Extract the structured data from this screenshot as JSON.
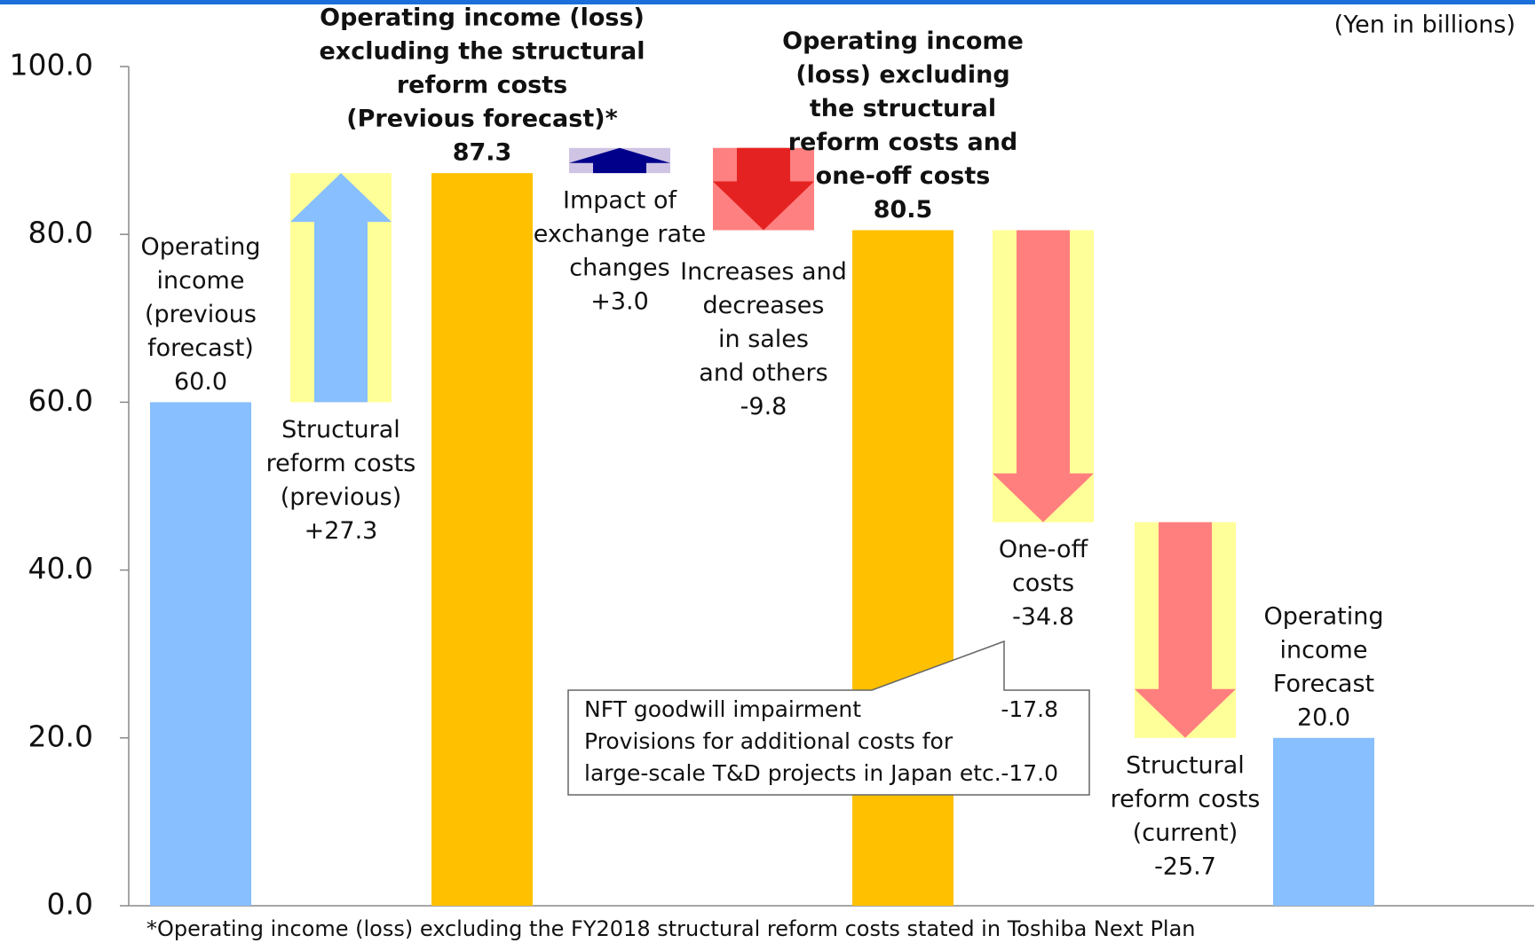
{
  "chart_data": {
    "type": "waterfall",
    "unit_label": "(Yen in billions)",
    "footnote": "*Operating income (loss) excluding the FY2018 structural reform costs stated in Toshiba Next Plan",
    "categories": [
      [
        "Operating",
        "income",
        "(previous",
        "forecast)"
      ],
      [
        "Structural",
        "reform costs",
        "(previous)"
      ],
      [
        "Operating income (loss)",
        "excluding the structural",
        "reform costs",
        "(Previous forecast)*"
      ],
      [
        "Impact of",
        "exchange rate",
        "changes"
      ],
      [
        "Increases and",
        "decreases",
        "in sales",
        "and others"
      ],
      [
        "Operating income",
        "(loss) excluding",
        "the structural",
        "reform costs and",
        "one-off costs"
      ],
      [
        "One-off",
        "costs"
      ],
      [
        "Structural",
        "reform costs",
        "(current)"
      ],
      [
        "Operating",
        "income",
        "Forecast"
      ]
    ],
    "values": [
      60.0,
      27.3,
      87.3,
      3.0,
      -9.8,
      80.5,
      -34.8,
      -25.7,
      20.0
    ],
    "value_labels": [
      "60.0",
      "+27.3",
      "87.3",
      "+3.0",
      "-9.8",
      "80.5",
      "-34.8",
      "-25.7",
      "20.0"
    ],
    "kinds": [
      "total",
      "delta",
      "subtotal",
      "delta",
      "delta",
      "subtotal",
      "delta",
      "delta",
      "total"
    ],
    "colors": [
      "#87bfff",
      "#87bfff",
      "#ffc000",
      "#00008b",
      "#e52222",
      "#ffc000",
      "#ff7f7f",
      "#ff7f7f",
      "#87bfff"
    ],
    "arrow_backgrounds": [
      null,
      "#ffff99",
      null,
      "#cfc4e4",
      "#ff8080",
      null,
      "#ffff99",
      "#ffff99",
      null
    ],
    "ylim": [
      0,
      100
    ],
    "yticks": [
      {
        "value": 0,
        "label": "0.0"
      },
      {
        "value": 20,
        "label": "20.0"
      },
      {
        "value": 40,
        "label": "40.0"
      },
      {
        "value": 60,
        "label": "60.0"
      },
      {
        "value": 80,
        "label": "80.0"
      },
      {
        "value": 100,
        "label": "100.0"
      }
    ],
    "callout": [
      {
        "text": [
          "NFT goodwill impairment"
        ],
        "value_label": "-17.8"
      },
      {
        "text": [
          "Provisions for additional costs for",
          "large-scale T&D projects in Japan etc."
        ],
        "value_label": "-17.0"
      }
    ]
  }
}
